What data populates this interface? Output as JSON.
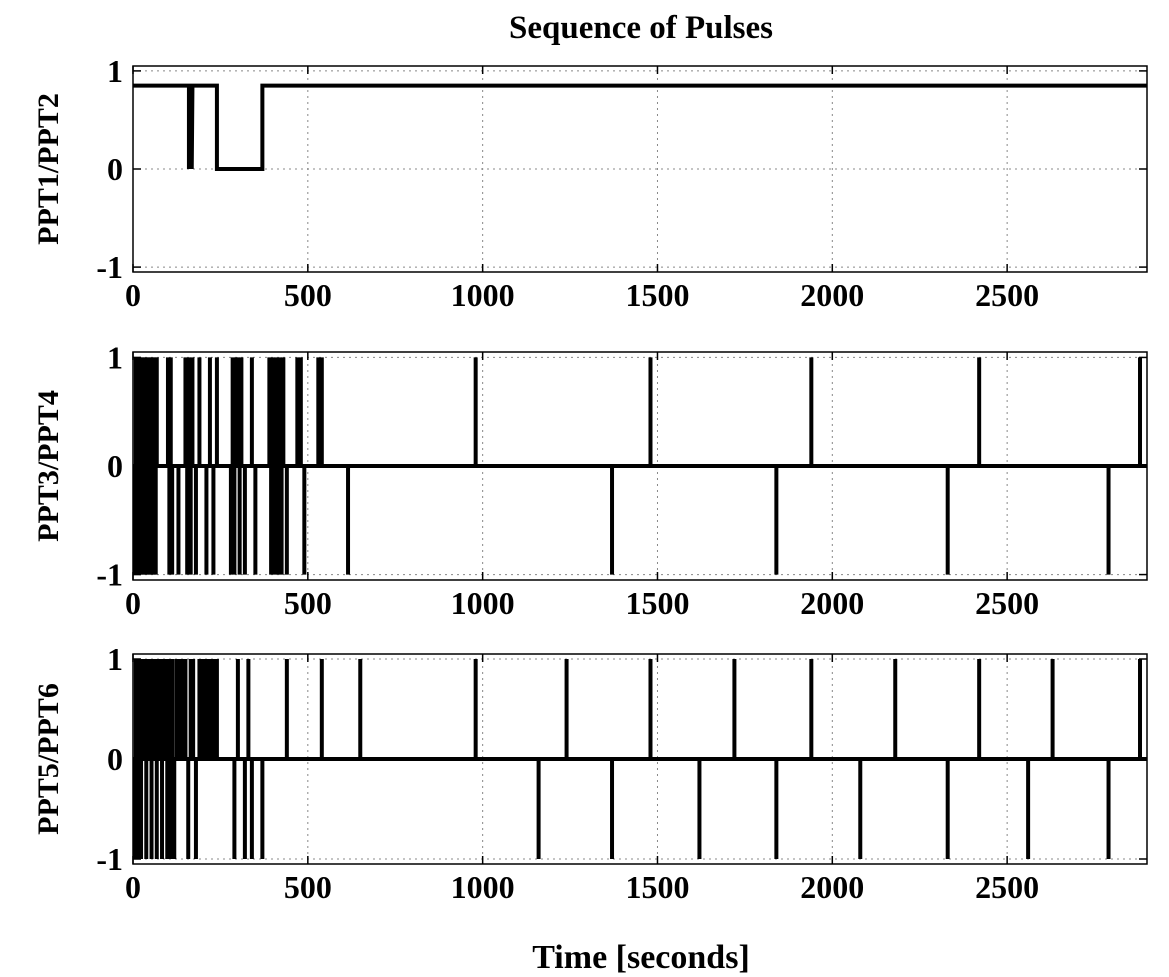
{
  "chart_data": {
    "title": "Sequence of Pulses",
    "xlabel": "Time [seconds]",
    "xlim": [
      0,
      2900
    ],
    "xticks": [
      0,
      500,
      1000,
      1500,
      2000,
      2500
    ],
    "grid": true,
    "panels": [
      {
        "type": "line",
        "ylabel": "PPT1/PPT2",
        "ylim": [
          -1.05,
          1.05
        ],
        "yticks": [
          1,
          0,
          -1
        ],
        "baseline": 0.85,
        "series": [
          {
            "x": [
              0,
              160,
              160,
              162,
              164,
              166,
              168,
              170,
              170,
              240,
              240,
              370,
              370,
              2900
            ],
            "y": [
              0.85,
              0.85,
              0,
              0.85,
              0,
              0.85,
              0,
              0.85,
              0.85,
              0.85,
              0,
              0,
              0.85,
              0.85
            ]
          }
        ]
      },
      {
        "type": "pulse",
        "ylabel": "PPT3/PPT4",
        "ylim": [
          -1.05,
          1.05
        ],
        "yticks": [
          1,
          0,
          -1
        ],
        "baseline": 0,
        "pulses": [
          [
            5,
            -1
          ],
          [
            8,
            1
          ],
          [
            11,
            -1
          ],
          [
            14,
            1
          ],
          [
            17,
            -1
          ],
          [
            20,
            1
          ],
          [
            23,
            -1
          ],
          [
            26,
            1
          ],
          [
            29,
            -1
          ],
          [
            32,
            1
          ],
          [
            35,
            -1
          ],
          [
            38,
            1
          ],
          [
            41,
            -1
          ],
          [
            44,
            1
          ],
          [
            47,
            -1
          ],
          [
            50,
            1
          ],
          [
            53,
            -1
          ],
          [
            56,
            1
          ],
          [
            59,
            -1
          ],
          [
            62,
            1
          ],
          [
            65,
            -1
          ],
          [
            68,
            1
          ],
          [
            100,
            1
          ],
          [
            104,
            -1
          ],
          [
            108,
            1
          ],
          [
            112,
            -1
          ],
          [
            130,
            -1
          ],
          [
            150,
            1
          ],
          [
            155,
            -1
          ],
          [
            160,
            1
          ],
          [
            165,
            -1
          ],
          [
            170,
            1
          ],
          [
            180,
            -1
          ],
          [
            190,
            1
          ],
          [
            210,
            -1
          ],
          [
            220,
            1
          ],
          [
            230,
            -1
          ],
          [
            240,
            1
          ],
          [
            280,
            -1
          ],
          [
            285,
            1
          ],
          [
            290,
            -1
          ],
          [
            295,
            1
          ],
          [
            300,
            1
          ],
          [
            305,
            -1
          ],
          [
            310,
            1
          ],
          [
            320,
            -1
          ],
          [
            340,
            1
          ],
          [
            350,
            -1
          ],
          [
            390,
            1
          ],
          [
            395,
            -1
          ],
          [
            400,
            1
          ],
          [
            405,
            -1
          ],
          [
            410,
            1
          ],
          [
            415,
            -1
          ],
          [
            420,
            1
          ],
          [
            425,
            -1
          ],
          [
            430,
            1
          ],
          [
            440,
            -1
          ],
          [
            470,
            1
          ],
          [
            480,
            1
          ],
          [
            490,
            -1
          ],
          [
            530,
            1
          ],
          [
            540,
            1
          ],
          [
            615,
            -1
          ],
          [
            980,
            1
          ],
          [
            1370,
            -1
          ],
          [
            1480,
            1
          ],
          [
            1840,
            -1
          ],
          [
            1940,
            1
          ],
          [
            2330,
            -1
          ],
          [
            2420,
            1
          ],
          [
            2790,
            -1
          ],
          [
            2880,
            1
          ]
        ]
      },
      {
        "type": "pulse",
        "ylabel": "PPT5/PPT6",
        "ylim": [
          -1.05,
          1.05
        ],
        "yticks": [
          1,
          0,
          -1
        ],
        "baseline": 0,
        "pulses": [
          [
            5,
            -1
          ],
          [
            8,
            1
          ],
          [
            11,
            1
          ],
          [
            14,
            -1
          ],
          [
            17,
            1
          ],
          [
            20,
            1
          ],
          [
            23,
            -1
          ],
          [
            26,
            1
          ],
          [
            29,
            1
          ],
          [
            32,
            1
          ],
          [
            35,
            1
          ],
          [
            38,
            -1
          ],
          [
            41,
            1
          ],
          [
            44,
            1
          ],
          [
            47,
            1
          ],
          [
            50,
            1
          ],
          [
            53,
            -1
          ],
          [
            56,
            1
          ],
          [
            59,
            1
          ],
          [
            62,
            1
          ],
          [
            65,
            1
          ],
          [
            68,
            -1
          ],
          [
            71,
            1
          ],
          [
            74,
            1
          ],
          [
            77,
            1
          ],
          [
            80,
            1
          ],
          [
            83,
            -1
          ],
          [
            86,
            1
          ],
          [
            89,
            1
          ],
          [
            92,
            1
          ],
          [
            95,
            1
          ],
          [
            98,
            -1
          ],
          [
            101,
            1
          ],
          [
            104,
            -1
          ],
          [
            107,
            1
          ],
          [
            110,
            -1
          ],
          [
            113,
            1
          ],
          [
            118,
            -1
          ],
          [
            125,
            1
          ],
          [
            130,
            1
          ],
          [
            135,
            1
          ],
          [
            140,
            1
          ],
          [
            150,
            1
          ],
          [
            158,
            -1
          ],
          [
            165,
            1
          ],
          [
            172,
            1
          ],
          [
            180,
            -1
          ],
          [
            190,
            1
          ],
          [
            200,
            1
          ],
          [
            205,
            1
          ],
          [
            210,
            1
          ],
          [
            215,
            1
          ],
          [
            220,
            1
          ],
          [
            230,
            1
          ],
          [
            240,
            1
          ],
          [
            290,
            -1
          ],
          [
            300,
            1
          ],
          [
            320,
            -1
          ],
          [
            330,
            1
          ],
          [
            340,
            -1
          ],
          [
            370,
            -1
          ],
          [
            440,
            1
          ],
          [
            540,
            1
          ],
          [
            650,
            1
          ],
          [
            980,
            1
          ],
          [
            1160,
            -1
          ],
          [
            1240,
            1
          ],
          [
            1370,
            -1
          ],
          [
            1480,
            1
          ],
          [
            1620,
            -1
          ],
          [
            1720,
            1
          ],
          [
            1840,
            -1
          ],
          [
            1940,
            1
          ],
          [
            2080,
            -1
          ],
          [
            2180,
            1
          ],
          [
            2330,
            -1
          ],
          [
            2420,
            1
          ],
          [
            2560,
            -1
          ],
          [
            2630,
            1
          ],
          [
            2790,
            -1
          ],
          [
            2880,
            1
          ]
        ]
      }
    ]
  }
}
